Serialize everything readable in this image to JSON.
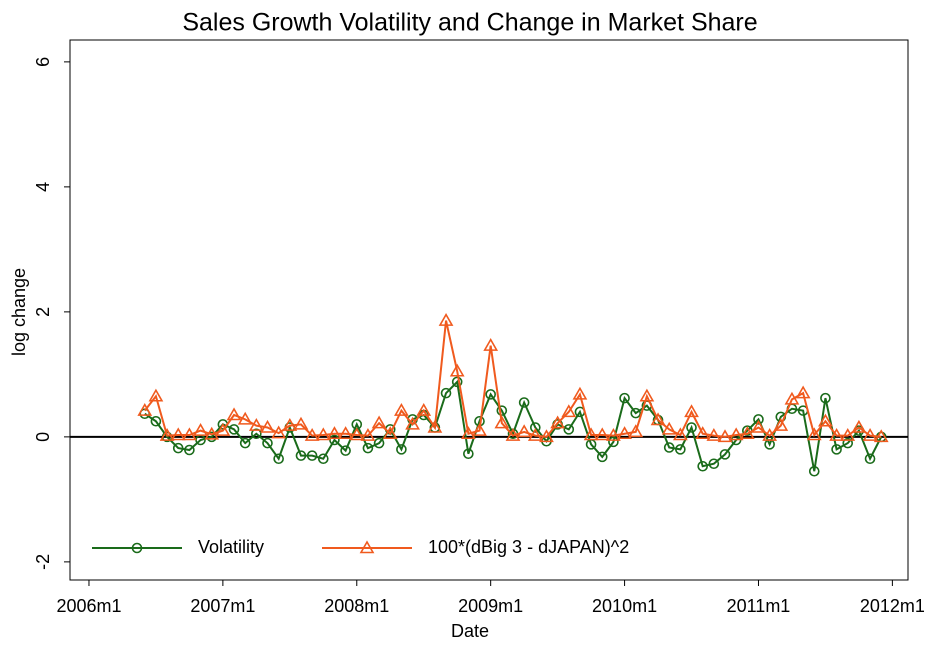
{
  "chart_data": {
    "type": "line",
    "title": "Sales Growth Volatility and Change in Market Share",
    "x_label": "Date",
    "y_label": "log change",
    "x": [
      557,
      558,
      559,
      560,
      561,
      562,
      563,
      564,
      565,
      566,
      567,
      568,
      569,
      570,
      571,
      572,
      573,
      574,
      575,
      576,
      577,
      578,
      579,
      580,
      581,
      582,
      583,
      584,
      585,
      586,
      587,
      588,
      589,
      590,
      591,
      592,
      593,
      594,
      595,
      596,
      597,
      598,
      599,
      600,
      601,
      602,
      603,
      604,
      605,
      606,
      607,
      608,
      609,
      610,
      611,
      612,
      613,
      614,
      615,
      616,
      617,
      618,
      619,
      620,
      621,
      622,
      623
    ],
    "series": [
      {
        "name": "Volatility",
        "color": "#1a6b1a",
        "marker": "circle",
        "values": [
          0.37,
          0.25,
          0.0,
          -0.18,
          -0.21,
          -0.05,
          0.0,
          0.2,
          0.12,
          -0.1,
          0.05,
          -0.1,
          -0.35,
          0.15,
          -0.3,
          -0.3,
          -0.35,
          -0.05,
          -0.22,
          0.2,
          -0.18,
          -0.1,
          0.12,
          -0.2,
          0.28,
          0.35,
          0.15,
          0.7,
          0.88,
          -0.27,
          0.25,
          0.68,
          0.42,
          0.05,
          0.55,
          0.15,
          -0.07,
          0.2,
          0.12,
          0.4,
          -0.12,
          -0.32,
          -0.08,
          0.62,
          0.38,
          0.5,
          0.27,
          -0.17,
          -0.2,
          0.15,
          -0.47,
          -0.43,
          -0.28,
          -0.05,
          0.1,
          0.28,
          -0.12,
          0.32,
          0.45,
          0.42,
          -0.55,
          0.62,
          -0.2,
          -0.1,
          0.1,
          -0.35,
          0.0
        ]
      },
      {
        "name": "100*(dBig 3 - dJAPAN)^2",
        "color": "#f05a1e",
        "marker": "triangle",
        "values": [
          0.42,
          0.65,
          0.02,
          0.03,
          0.03,
          0.1,
          0.04,
          0.1,
          0.35,
          0.28,
          0.18,
          0.15,
          0.06,
          0.18,
          0.2,
          0.02,
          0.03,
          0.05,
          0.05,
          0.03,
          0.02,
          0.22,
          0.05,
          0.42,
          0.2,
          0.42,
          0.15,
          1.86,
          1.05,
          0.05,
          0.1,
          1.46,
          0.22,
          0.02,
          0.08,
          0.02,
          0.0,
          0.22,
          0.4,
          0.68,
          0.03,
          0.03,
          0.02,
          0.05,
          0.08,
          0.65,
          0.27,
          0.12,
          0.03,
          0.4,
          0.05,
          0.02,
          0.0,
          0.03,
          0.05,
          0.15,
          0.02,
          0.18,
          0.6,
          0.7,
          0.03,
          0.25,
          0.02,
          0.02,
          0.15,
          0.02,
          0.0
        ]
      }
    ],
    "xlim": [
      550.3,
      625.4
    ],
    "xticks": [
      {
        "value": 552,
        "label": "2006m1"
      },
      {
        "value": 564,
        "label": "2007m1"
      },
      {
        "value": 576,
        "label": "2008m1"
      },
      {
        "value": 588,
        "label": "2009m1"
      },
      {
        "value": 600,
        "label": "2010m1"
      },
      {
        "value": 612,
        "label": "2011m1"
      },
      {
        "value": 624,
        "label": "2012m1"
      }
    ],
    "ylim": [
      -2.29,
      6.35
    ],
    "yticks": [
      -2,
      0,
      2,
      4,
      6
    ],
    "hline": 0,
    "legend": "bottom-left"
  }
}
